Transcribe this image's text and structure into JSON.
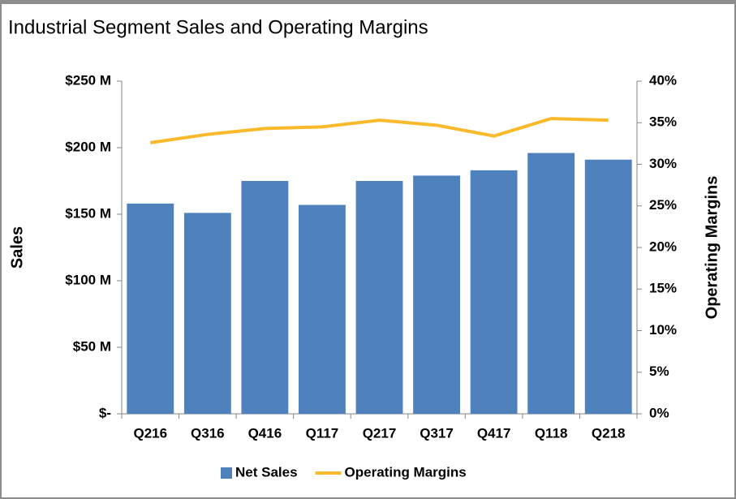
{
  "chart_data": {
    "type": "bar_line",
    "title": "Industrial Segment Sales and Operating Margins",
    "categories": [
      "Q216",
      "Q316",
      "Q416",
      "Q117",
      "Q217",
      "Q317",
      "Q417",
      "Q118",
      "Q218"
    ],
    "series": [
      {
        "name": "Net Sales",
        "type": "bar",
        "color": "#4f81bd",
        "axis": "y",
        "values": [
          158,
          151,
          175,
          157,
          175,
          179,
          183,
          196,
          191
        ]
      },
      {
        "name": "Operating Margins",
        "type": "line",
        "color": "#f9b92b",
        "axis": "y2",
        "values": [
          32.6,
          33.6,
          34.3,
          34.5,
          35.3,
          34.7,
          33.4,
          35.5,
          35.3
        ]
      }
    ],
    "ylabel": "Sales",
    "y2label": "Operating Margins",
    "ylim": [
      0,
      250
    ],
    "yticks": [
      {
        "value": 0,
        "label": "$-"
      },
      {
        "value": 50,
        "label": "$50 M"
      },
      {
        "value": 100,
        "label": "$100 M"
      },
      {
        "value": 150,
        "label": "$150 M"
      },
      {
        "value": 200,
        "label": "$200 M"
      },
      {
        "value": 250,
        "label": "$250 M"
      }
    ],
    "y2lim": [
      0,
      40
    ],
    "y2ticks": [
      {
        "value": 0,
        "label": "0%"
      },
      {
        "value": 5,
        "label": "5%"
      },
      {
        "value": 10,
        "label": "10%"
      },
      {
        "value": 15,
        "label": "15%"
      },
      {
        "value": 20,
        "label": "20%"
      },
      {
        "value": 25,
        "label": "25%"
      },
      {
        "value": 30,
        "label": "30%"
      },
      {
        "value": 35,
        "label": "35%"
      },
      {
        "value": 40,
        "label": "40%"
      }
    ],
    "legend": "bottom"
  }
}
